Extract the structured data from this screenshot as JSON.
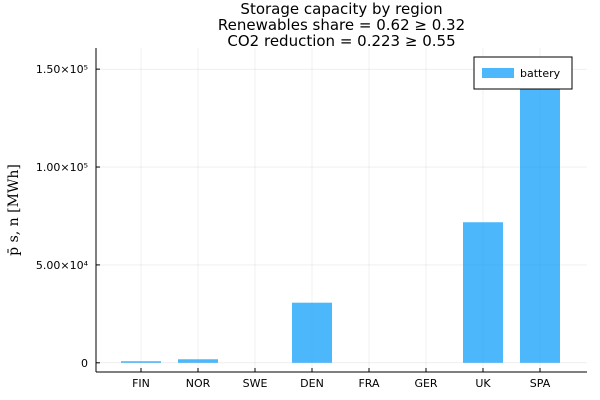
{
  "chart_data": {
    "type": "bar",
    "title_lines": [
      "Storage capacity by region",
      "Renewables share = 0.62 ≥ 0.32",
      "CO2 reduction = 0.223 ≥ 0.55"
    ],
    "xlabel": "",
    "ylabel": "p̄ s, n [MWh]",
    "categories": [
      "FIN",
      "NOR",
      "SWE",
      "DEN",
      "FRA",
      "GER",
      "UK",
      "SPA"
    ],
    "series": [
      {
        "name": "battery",
        "color": "#009af9",
        "values": [
          800,
          1800,
          0,
          30700,
          0,
          0,
          71800,
          156000
        ]
      }
    ],
    "yticks": [
      {
        "value": 0,
        "label": "0"
      },
      {
        "value": 50000,
        "label": "5.00×10⁴"
      },
      {
        "value": 100000,
        "label": "1.00×10⁵"
      },
      {
        "value": 150000,
        "label": "1.50×10⁵"
      }
    ],
    "ylim": [
      -4700,
      160800
    ],
    "grid": true,
    "legend_position": "top-right"
  }
}
